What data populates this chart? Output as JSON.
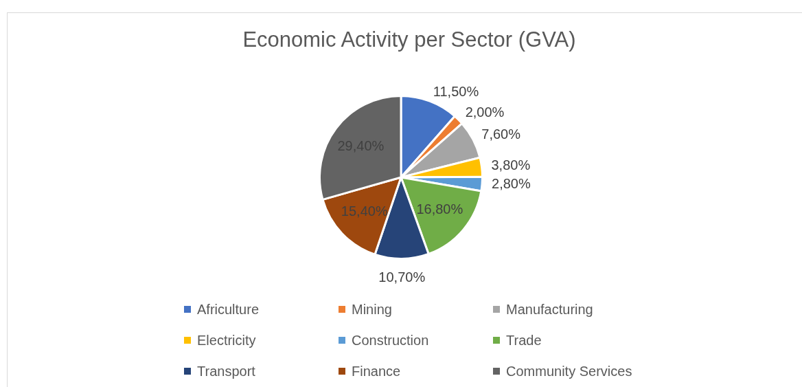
{
  "chart_data": {
    "type": "pie",
    "title": "Economic Activity per Sector (GVA)",
    "categories": [
      "Africulture",
      "Mining",
      "Manufacturing",
      "Electricity",
      "Construction",
      "Trade",
      "Transport",
      "Finance",
      "Community Services"
    ],
    "values": [
      11.5,
      2.0,
      7.6,
      3.8,
      2.8,
      16.8,
      10.7,
      15.4,
      29.4
    ],
    "colors": [
      "#4472c4",
      "#ed7d31",
      "#a5a5a5",
      "#ffc000",
      "#5b9bd5",
      "#70ad47",
      "#264478",
      "#9e480e",
      "#636363"
    ],
    "value_labels": [
      "11,50%",
      "2,00%",
      "7,60%",
      "3,80%",
      "2,80%",
      "16,80%",
      "10,70%",
      "15,40%",
      "29,40%"
    ],
    "legend": "bottom"
  }
}
